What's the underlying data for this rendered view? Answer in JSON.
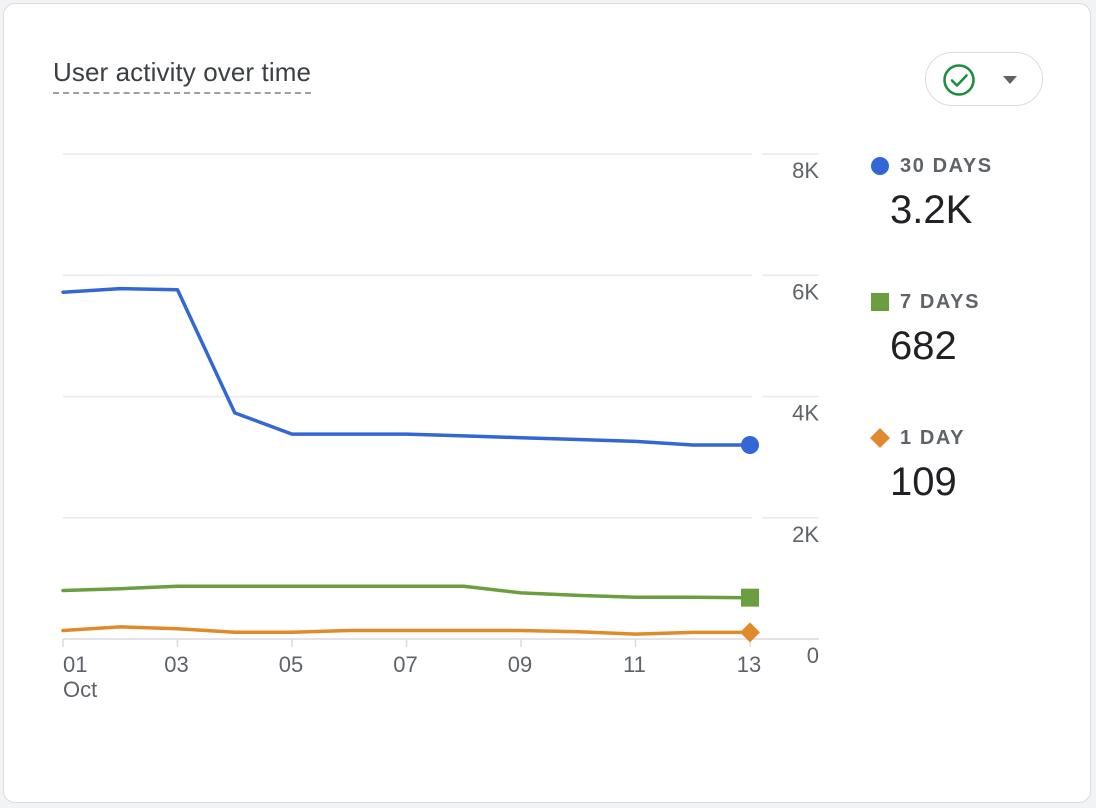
{
  "card": {
    "title": "User activity over time"
  },
  "filter": {
    "icon": "check-circle-icon",
    "dropdown_icon": "caret-down-icon",
    "check_color": "#1e8e3e"
  },
  "chart_data": {
    "type": "line",
    "title": "User activity over time",
    "x": [
      1,
      2,
      3,
      4,
      5,
      6,
      7,
      8,
      9,
      10,
      11,
      12,
      13
    ],
    "x_tick_labels": [
      "01",
      "03",
      "05",
      "07",
      "09",
      "11",
      "13"
    ],
    "x_tick_values": [
      1,
      3,
      5,
      7,
      9,
      11,
      13
    ],
    "x_sublabel": "Oct",
    "ylim": [
      0,
      8000
    ],
    "y_ticks": [
      0,
      2000,
      4000,
      6000,
      8000
    ],
    "y_tick_labels": [
      "0",
      "2K",
      "4K",
      "6K",
      "8K"
    ],
    "grid": true,
    "y_axis_side": "right",
    "legend_position": "right",
    "series": [
      {
        "name": "30 DAYS",
        "summary": "3.2K",
        "color": "#3367d6",
        "marker": "circle",
        "values": [
          5720,
          5780,
          5760,
          3730,
          3380,
          3380,
          3380,
          3350,
          3320,
          3290,
          3260,
          3200,
          3200
        ]
      },
      {
        "name": "7 DAYS",
        "summary": "682",
        "color": "#6a9e3f",
        "marker": "square",
        "values": [
          800,
          830,
          870,
          870,
          870,
          870,
          870,
          870,
          760,
          720,
          690,
          690,
          682
        ]
      },
      {
        "name": "1 DAY",
        "summary": "109",
        "color": "#e08a2e",
        "marker": "diamond",
        "values": [
          140,
          200,
          170,
          110,
          110,
          140,
          140,
          140,
          140,
          120,
          80,
          109,
          109
        ]
      }
    ]
  }
}
